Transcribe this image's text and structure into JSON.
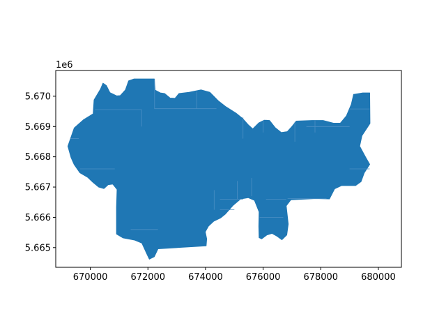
{
  "chart_data": {
    "type": "map",
    "title": "",
    "xlabel": "",
    "ylabel": "",
    "y_offset_label": "1e6",
    "xlim": [
      668800,
      680800
    ],
    "ylim": [
      5664350,
      5670850
    ],
    "xticks": [
      670000,
      672000,
      674000,
      676000,
      678000,
      680000
    ],
    "xtick_labels": [
      "670000",
      "672000",
      "674000",
      "676000",
      "678000",
      "680000"
    ],
    "yticks": [
      5665000,
      5666000,
      5667000,
      5668000,
      5669000,
      5670000
    ],
    "ytick_labels": [
      "5.665",
      "5.666",
      "5.667",
      "5.668",
      "5.669",
      "5.670"
    ],
    "grid": false,
    "legend": "none",
    "fill_color": "#1f77b4",
    "inner_line_color": "#4d8fc4",
    "polygon": [
      [
        669220,
        5668350
      ],
      [
        669440,
        5668950
      ],
      [
        669760,
        5669220
      ],
      [
        670100,
        5669420
      ],
      [
        670130,
        5669880
      ],
      [
        670350,
        5670230
      ],
      [
        670440,
        5670430
      ],
      [
        670560,
        5670350
      ],
      [
        670680,
        5670120
      ],
      [
        670920,
        5670010
      ],
      [
        671040,
        5670020
      ],
      [
        671220,
        5670210
      ],
      [
        671330,
        5670510
      ],
      [
        671520,
        5670570
      ],
      [
        672220,
        5670570
      ],
      [
        672250,
        5670200
      ],
      [
        672430,
        5670110
      ],
      [
        672580,
        5670090
      ],
      [
        672770,
        5669940
      ],
      [
        672940,
        5669930
      ],
      [
        673080,
        5670090
      ],
      [
        673430,
        5670130
      ],
      [
        673850,
        5670210
      ],
      [
        674150,
        5670130
      ],
      [
        674440,
        5669850
      ],
      [
        674710,
        5669650
      ],
      [
        675060,
        5669440
      ],
      [
        675280,
        5669270
      ],
      [
        675480,
        5669060
      ],
      [
        675640,
        5668920
      ],
      [
        675850,
        5669120
      ],
      [
        676040,
        5669210
      ],
      [
        676220,
        5669200
      ],
      [
        676420,
        5668960
      ],
      [
        676630,
        5668800
      ],
      [
        676840,
        5668830
      ],
      [
        677000,
        5669000
      ],
      [
        677150,
        5669180
      ],
      [
        677700,
        5669200
      ],
      [
        678080,
        5669200
      ],
      [
        678440,
        5669110
      ],
      [
        678680,
        5669110
      ],
      [
        678890,
        5669350
      ],
      [
        679060,
        5669730
      ],
      [
        679140,
        5670060
      ],
      [
        679460,
        5670110
      ],
      [
        679700,
        5670110
      ],
      [
        679710,
        5669100
      ],
      [
        679430,
        5668700
      ],
      [
        679350,
        5668350
      ],
      [
        679550,
        5668000
      ],
      [
        679700,
        5667750
      ],
      [
        679510,
        5667470
      ],
      [
        679400,
        5667180
      ],
      [
        679210,
        5667050
      ],
      [
        678720,
        5667050
      ],
      [
        678480,
        5666940
      ],
      [
        678300,
        5666610
      ],
      [
        677820,
        5666620
      ],
      [
        676960,
        5666580
      ],
      [
        676800,
        5666380
      ],
      [
        676870,
        5665780
      ],
      [
        676820,
        5665420
      ],
      [
        676650,
        5665260
      ],
      [
        676480,
        5665380
      ],
      [
        676310,
        5665470
      ],
      [
        676130,
        5665420
      ],
      [
        675950,
        5665290
      ],
      [
        675860,
        5665330
      ],
      [
        675850,
        5665700
      ],
      [
        675860,
        5666180
      ],
      [
        675700,
        5666560
      ],
      [
        675480,
        5666650
      ],
      [
        675220,
        5666610
      ],
      [
        674960,
        5666400
      ],
      [
        674690,
        5666110
      ],
      [
        674520,
        5665980
      ],
      [
        674280,
        5665870
      ],
      [
        674100,
        5665710
      ],
      [
        673990,
        5665520
      ],
      [
        674040,
        5665290
      ],
      [
        674020,
        5665060
      ],
      [
        672350,
        5664960
      ],
      [
        672220,
        5664700
      ],
      [
        672050,
        5664620
      ],
      [
        671960,
        5664800
      ],
      [
        671790,
        5665150
      ],
      [
        671540,
        5665250
      ],
      [
        671140,
        5665320
      ],
      [
        670910,
        5665450
      ],
      [
        670910,
        5666340
      ],
      [
        670930,
        5666920
      ],
      [
        670780,
        5667100
      ],
      [
        670620,
        5667080
      ],
      [
        670470,
        5666950
      ],
      [
        670290,
        5667000
      ],
      [
        670100,
        5667150
      ],
      [
        669910,
        5667320
      ],
      [
        669640,
        5667470
      ],
      [
        669440,
        5667740
      ],
      [
        669330,
        5667980
      ]
    ],
    "inner_lines": [
      [
        [
          670160,
          5669560
        ],
        [
          671780,
          5669560
        ]
      ],
      [
        [
          672220,
          5669590
        ],
        [
          674380,
          5669590
        ]
      ],
      [
        [
          669300,
          5668600
        ],
        [
          669600,
          5668600
        ]
      ],
      [
        [
          669640,
          5667600
        ],
        [
          670850,
          5667600
        ]
      ],
      [
        [
          671400,
          5665600
        ],
        [
          672350,
          5665600
        ]
      ],
      [
        [
          674500,
          5666600
        ],
        [
          675300,
          5666600
        ]
      ],
      [
        [
          674500,
          5666250
        ],
        [
          675000,
          5666250
        ]
      ],
      [
        [
          676100,
          5666600
        ],
        [
          676800,
          5666600
        ]
      ],
      [
        [
          675880,
          5666000
        ],
        [
          676700,
          5666000
        ]
      ],
      [
        [
          676850,
          5666620
        ],
        [
          678200,
          5666620
        ]
      ],
      [
        [
          679000,
          5667600
        ],
        [
          679700,
          5667600
        ]
      ],
      [
        [
          679000,
          5669580
        ],
        [
          679700,
          5669580
        ]
      ],
      [
        [
          677500,
          5669000
        ],
        [
          679000,
          5669000
        ]
      ],
      [
        [
          672230,
          5669590
        ],
        [
          672230,
          5670570
        ]
      ],
      [
        [
          671780,
          5669000
        ],
        [
          671780,
          5669560
        ]
      ],
      [
        [
          673700,
          5669590
        ],
        [
          673700,
          5670150
        ]
      ],
      [
        [
          675100,
          5666600
        ],
        [
          675100,
          5667200
        ]
      ],
      [
        [
          675600,
          5666700
        ],
        [
          675600,
          5667300
        ]
      ],
      [
        [
          676000,
          5668800
        ],
        [
          676000,
          5669200
        ]
      ],
      [
        [
          677100,
          5668500
        ],
        [
          677100,
          5669150
        ]
      ],
      [
        [
          674300,
          5666250
        ],
        [
          674300,
          5666900
        ]
      ],
      [
        [
          675300,
          5668600
        ],
        [
          675300,
          5669300
        ]
      ],
      [
        [
          677800,
          5668800
        ],
        [
          677800,
          5669200
        ]
      ]
    ]
  }
}
